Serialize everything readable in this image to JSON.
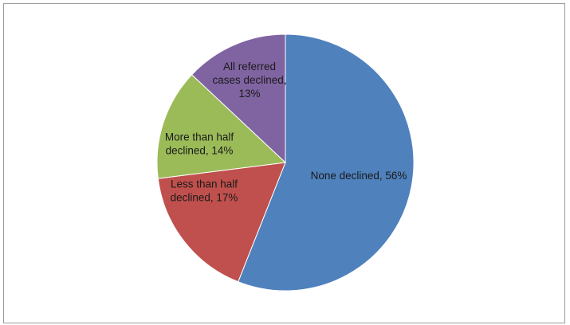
{
  "chart_data": {
    "type": "pie",
    "title": "",
    "legend": "none",
    "slices": [
      {
        "label_lines": [
          "None declined, 56%"
        ],
        "value": 56,
        "color": "#4f81bd"
      },
      {
        "label_lines": [
          "Less than half",
          "declined, 17%"
        ],
        "value": 17,
        "color": "#c0504d"
      },
      {
        "label_lines": [
          "More than half",
          "declined, 14%"
        ],
        "value": 14,
        "color": "#9bbb59"
      },
      {
        "label_lines": [
          "All referred",
          "cases declined,",
          "13%"
        ],
        "value": 13,
        "color": "#8064a2"
      }
    ]
  }
}
